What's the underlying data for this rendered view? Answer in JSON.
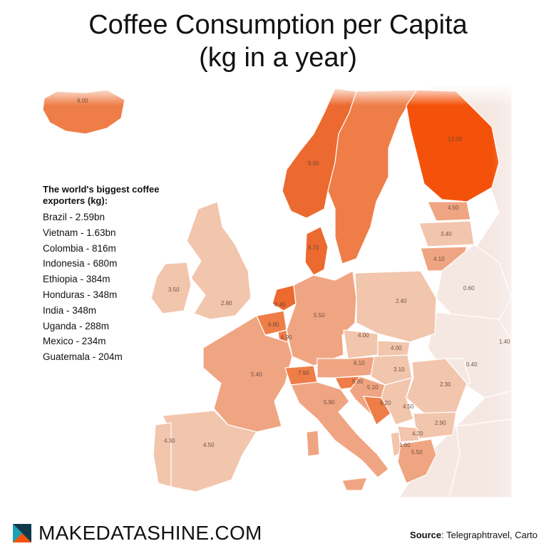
{
  "title": {
    "line1": "Coffee Consumption per Capita",
    "line2": "(kg in a year)"
  },
  "colors": {
    "high": "#f4520a",
    "mid_high": "#ef7d47",
    "mid": "#f0a582",
    "mid_low": "#f2c5ad",
    "low": "#f6dccc",
    "very_low": "#f5e8e2",
    "border": "#ffffff"
  },
  "legend": {
    "title": "The world's biggest coffee exporters (kg):",
    "items": [
      "Brazil - 2.59bn",
      "Vietnam - 1.63bn",
      "Colombia - 816m",
      "Indonesia - 680m",
      "Ethiopia - 384m",
      "Honduras - 348m",
      "India - 348m",
      "Uganda - 288m",
      "Mexico - 234m",
      "Guatemala - 204m"
    ]
  },
  "map_labels": [
    "9.00",
    "9.90",
    "12.00",
    "4.50",
    "3.40",
    "8.70",
    "4.10",
    "3.50",
    "2.80",
    "8.40",
    "5.50",
    "2.40",
    "0.60",
    "6.80",
    "6.90",
    "4.00",
    "4.00",
    "1.40",
    "5.40",
    "7.90",
    "6.10",
    "3.10",
    "0.40",
    "5.80",
    "5.10",
    "2.30",
    "5.90",
    "6.20",
    "4.50",
    "2.90",
    "4.30",
    "4.50",
    "4.20",
    "1.60",
    "5.50"
  ],
  "footer": {
    "brand": "MAKEDATASHINE.COM",
    "source_label": "Source",
    "source_text": ": Telegraphtravel, Carto"
  }
}
